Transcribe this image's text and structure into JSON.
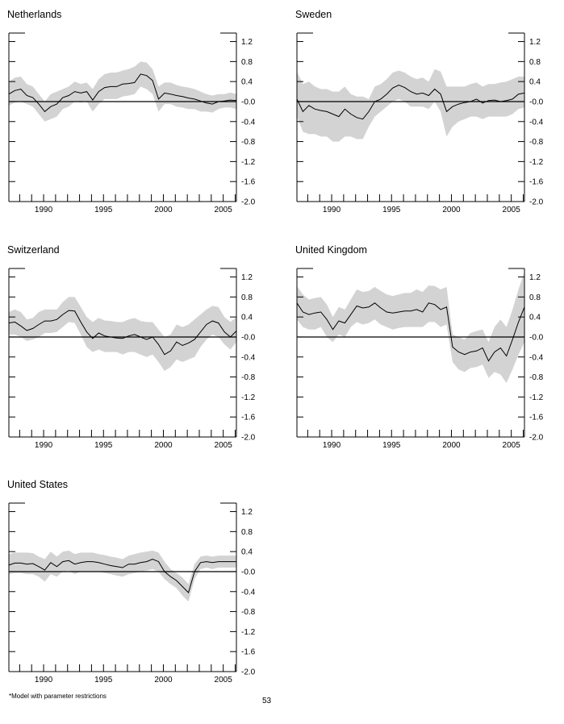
{
  "footnote": "*Model with parameter restrictions",
  "page_number": "53",
  "colors": {
    "band": "#d3d3d3",
    "line": "#000000"
  },
  "chart_data": [
    {
      "type": "line",
      "title": "Netherlands",
      "xlim": [
        1987.0,
        2006.0
      ],
      "ylim": [
        -2.0,
        1.37
      ],
      "xticks": [
        "1990",
        "1995",
        "2000",
        "2005"
      ],
      "yticks": [
        "1.2",
        "0.8",
        "0.4",
        "-0.0",
        "-0.4",
        "-0.8",
        "-1.2",
        "-1.6",
        "-2.0"
      ],
      "x_start": 1987.0,
      "x_step": 0.5,
      "y": [
        0.15,
        0.22,
        0.25,
        0.12,
        0.08,
        -0.05,
        -0.2,
        -0.1,
        -0.05,
        0.08,
        0.12,
        0.2,
        0.17,
        0.2,
        0.03,
        0.2,
        0.28,
        0.3,
        0.3,
        0.35,
        0.36,
        0.38,
        0.55,
        0.52,
        0.42,
        0.05,
        0.17,
        0.15,
        0.12,
        0.1,
        0.07,
        0.05,
        0.01,
        -0.03,
        -0.05,
        0.0,
        0.01,
        0.03,
        0.02
      ],
      "lower": [
        -0.08,
        -0.02,
        0,
        -0.05,
        -0.1,
        -0.25,
        -0.4,
        -0.35,
        -0.3,
        -0.15,
        -0.1,
        0,
        -0.02,
        0,
        -0.2,
        -0.05,
        0.05,
        0.05,
        0.05,
        0.1,
        0.12,
        0.15,
        0.3,
        0.25,
        0.15,
        -0.2,
        -0.05,
        -0.05,
        -0.1,
        -0.12,
        -0.15,
        -0.15,
        -0.2,
        -0.2,
        -0.22,
        -0.15,
        -0.12,
        -0.12,
        -0.15
      ],
      "upper": [
        0.4,
        0.48,
        0.5,
        0.35,
        0.3,
        0.15,
        0.0,
        0.15,
        0.2,
        0.25,
        0.3,
        0.4,
        0.35,
        0.38,
        0.25,
        0.45,
        0.55,
        0.58,
        0.58,
        0.62,
        0.65,
        0.7,
        0.8,
        0.78,
        0.65,
        0.3,
        0.38,
        0.38,
        0.33,
        0.3,
        0.28,
        0.25,
        0.2,
        0.15,
        0.12,
        0.15,
        0.15,
        0.18,
        0.15
      ]
    },
    {
      "type": "line",
      "title": "Sweden",
      "xlim": [
        1987.0,
        2006.0
      ],
      "ylim": [
        -2.0,
        1.37
      ],
      "xticks": [
        "1990",
        "1995",
        "2000",
        "2005"
      ],
      "yticks": [
        "1.2",
        "0.8",
        "0.4",
        "-0.0",
        "-0.4",
        "-0.8",
        "-1.2",
        "-1.6",
        "-2.0"
      ],
      "x_start": 1987.0,
      "x_step": 0.5,
      "y": [
        0.05,
        -0.2,
        -0.08,
        -0.15,
        -0.18,
        -0.2,
        -0.25,
        -0.3,
        -0.15,
        -0.25,
        -0.32,
        -0.35,
        -0.2,
        0.0,
        0.05,
        0.15,
        0.27,
        0.33,
        0.28,
        0.2,
        0.15,
        0.17,
        0.12,
        0.25,
        0.15,
        -0.2,
        -0.1,
        -0.05,
        -0.02,
        0.0,
        0.05,
        -0.03,
        0.02,
        0.03,
        0.0,
        0.02,
        0.05,
        0.15,
        0.17
      ],
      "lower": [
        -0.3,
        -0.6,
        -0.65,
        -0.65,
        -0.7,
        -0.7,
        -0.8,
        -0.8,
        -0.7,
        -0.7,
        -0.75,
        -0.75,
        -0.5,
        -0.3,
        -0.2,
        -0.1,
        0,
        0.05,
        0,
        -0.1,
        -0.1,
        -0.1,
        -0.15,
        0,
        -0.2,
        -0.7,
        -0.5,
        -0.4,
        -0.35,
        -0.3,
        -0.3,
        -0.35,
        -0.3,
        -0.3,
        -0.3,
        -0.3,
        -0.25,
        -0.15,
        -0.12
      ],
      "upper": [
        0.6,
        0.35,
        0.4,
        0.3,
        0.25,
        0.25,
        0.2,
        0.2,
        0.3,
        0.15,
        0.1,
        0.1,
        0.05,
        0.3,
        0.35,
        0.45,
        0.58,
        0.62,
        0.58,
        0.5,
        0.45,
        0.48,
        0.4,
        0.65,
        0.6,
        0.3,
        0.3,
        0.3,
        0.3,
        0.35,
        0.38,
        0.3,
        0.35,
        0.35,
        0.38,
        0.4,
        0.45,
        0.5,
        0.5
      ]
    },
    {
      "type": "line",
      "title": "Switzerland",
      "xlim": [
        1987.0,
        2006.0
      ],
      "ylim": [
        -2.0,
        1.37
      ],
      "xticks": [
        "1990",
        "1995",
        "2000",
        "2005"
      ],
      "yticks": [
        "1.2",
        "0.8",
        "0.4",
        "-0.0",
        "-0.4",
        "-0.8",
        "-1.2",
        "-1.6",
        "-2.0"
      ],
      "x_start": 1987.0,
      "x_step": 0.5,
      "y": [
        0.28,
        0.3,
        0.22,
        0.13,
        0.17,
        0.25,
        0.32,
        0.32,
        0.35,
        0.45,
        0.53,
        0.52,
        0.3,
        0.1,
        -0.03,
        0.08,
        0.02,
        0.0,
        -0.02,
        -0.03,
        0.02,
        0.05,
        0.0,
        -0.05,
        0.0,
        -0.15,
        -0.35,
        -0.28,
        -0.1,
        -0.17,
        -0.12,
        -0.05,
        0.1,
        0.25,
        0.32,
        0.28,
        0.1,
        0.0,
        0.12
      ],
      "lower": [
        0.05,
        0.05,
        0,
        -0.08,
        -0.05,
        0,
        0.08,
        0.08,
        0.1,
        0.2,
        0.3,
        0.28,
        0.05,
        -0.2,
        -0.3,
        -0.25,
        -0.3,
        -0.3,
        -0.3,
        -0.35,
        -0.3,
        -0.3,
        -0.35,
        -0.4,
        -0.35,
        -0.5,
        -0.68,
        -0.6,
        -0.45,
        -0.5,
        -0.45,
        -0.4,
        -0.2,
        -0.05,
        0.05,
        0,
        -0.15,
        -0.25,
        -0.1
      ],
      "upper": [
        0.5,
        0.55,
        0.5,
        0.35,
        0.38,
        0.5,
        0.55,
        0.55,
        0.55,
        0.7,
        0.8,
        0.8,
        0.6,
        0.4,
        0.3,
        0.38,
        0.33,
        0.32,
        0.3,
        0.3,
        0.35,
        0.38,
        0.32,
        0.3,
        0.3,
        0.15,
        0.0,
        0.05,
        0.25,
        0.2,
        0.25,
        0.35,
        0.45,
        0.55,
        0.62,
        0.6,
        0.4,
        0.3,
        0.4
      ]
    },
    {
      "type": "line",
      "title": "United Kingdom",
      "xlim": [
        1987.0,
        2006.0
      ],
      "ylim": [
        -2.0,
        1.37
      ],
      "xticks": [
        "1990",
        "1995",
        "2000",
        "2005"
      ],
      "yticks": [
        "1.2",
        "0.8",
        "0.4",
        "-0.0",
        "-0.4",
        "-0.8",
        "-1.2",
        "-1.6",
        "-2.0"
      ],
      "x_start": 1987.0,
      "x_step": 0.5,
      "y": [
        0.68,
        0.5,
        0.45,
        0.48,
        0.5,
        0.35,
        0.15,
        0.32,
        0.28,
        0.45,
        0.62,
        0.58,
        0.6,
        0.68,
        0.58,
        0.5,
        0.48,
        0.5,
        0.52,
        0.52,
        0.55,
        0.5,
        0.68,
        0.65,
        0.55,
        0.6,
        -0.2,
        -0.3,
        -0.35,
        -0.3,
        -0.28,
        -0.22,
        -0.48,
        -0.3,
        -0.22,
        -0.38,
        -0.05,
        0.3,
        0.6
      ],
      "lower": [
        0.35,
        0.2,
        0.15,
        0.15,
        0.2,
        0,
        -0.1,
        0.05,
        0,
        0.2,
        0.3,
        0.25,
        0.28,
        0.35,
        0.25,
        0.2,
        0.15,
        0.18,
        0.2,
        0.2,
        0.2,
        0.2,
        0.3,
        0.3,
        0.2,
        0.25,
        -0.5,
        -0.65,
        -0.7,
        -0.62,
        -0.6,
        -0.55,
        -0.82,
        -0.7,
        -0.75,
        -0.92,
        -0.65,
        -0.35,
        -0.1
      ],
      "upper": [
        1.02,
        0.85,
        0.75,
        0.78,
        0.8,
        0.65,
        0.4,
        0.6,
        0.55,
        0.75,
        0.95,
        0.9,
        0.92,
        1.0,
        0.92,
        0.85,
        0.82,
        0.85,
        0.88,
        0.88,
        0.95,
        0.9,
        1.03,
        1.02,
        0.95,
        1.0,
        0.05,
        0.0,
        -0.05,
        0.08,
        0.12,
        0.15,
        -0.1,
        0.2,
        0.35,
        0.2,
        0.55,
        0.95,
        1.3
      ]
    },
    {
      "type": "line",
      "title": "United States",
      "xlim": [
        1987.0,
        2006.0
      ],
      "ylim": [
        -2.0,
        1.37
      ],
      "xticks": [
        "1990",
        "1995",
        "2000",
        "2005"
      ],
      "yticks": [
        "1.2",
        "0.8",
        "0.4",
        "-0.0",
        "-0.4",
        "-0.8",
        "-1.2",
        "-1.6",
        "-2.0"
      ],
      "x_start": 1987.0,
      "x_step": 0.5,
      "y": [
        0.13,
        0.17,
        0.17,
        0.15,
        0.16,
        0.1,
        0.03,
        0.18,
        0.1,
        0.2,
        0.22,
        0.15,
        0.18,
        0.2,
        0.2,
        0.18,
        0.15,
        0.12,
        0.1,
        0.08,
        0.15,
        0.15,
        0.18,
        0.2,
        0.25,
        0.2,
        0.0,
        -0.1,
        -0.18,
        -0.3,
        -0.42,
        0.0,
        0.18,
        0.2,
        0.18,
        0.2,
        0.2,
        0.2,
        0.2
      ],
      "lower": [
        -0.05,
        -0.03,
        -0.03,
        -0.05,
        -0.05,
        -0.1,
        -0.2,
        -0.05,
        -0.1,
        0,
        0.02,
        -0.05,
        0,
        0,
        0,
        0,
        -0.03,
        -0.05,
        -0.08,
        -0.1,
        -0.05,
        -0.03,
        0,
        0.02,
        0.05,
        0,
        -0.15,
        -0.25,
        -0.33,
        -0.48,
        -0.6,
        -0.15,
        0.05,
        0.08,
        0.05,
        0.08,
        0.08,
        0.08,
        0.08
      ],
      "upper": [
        0.35,
        0.38,
        0.38,
        0.38,
        0.37,
        0.3,
        0.25,
        0.4,
        0.3,
        0.4,
        0.42,
        0.35,
        0.38,
        0.38,
        0.38,
        0.35,
        0.33,
        0.3,
        0.28,
        0.25,
        0.32,
        0.35,
        0.38,
        0.4,
        0.42,
        0.38,
        0.2,
        0.05,
        -0.03,
        -0.12,
        -0.25,
        0.15,
        0.3,
        0.32,
        0.3,
        0.32,
        0.32,
        0.32,
        0.32
      ]
    }
  ]
}
